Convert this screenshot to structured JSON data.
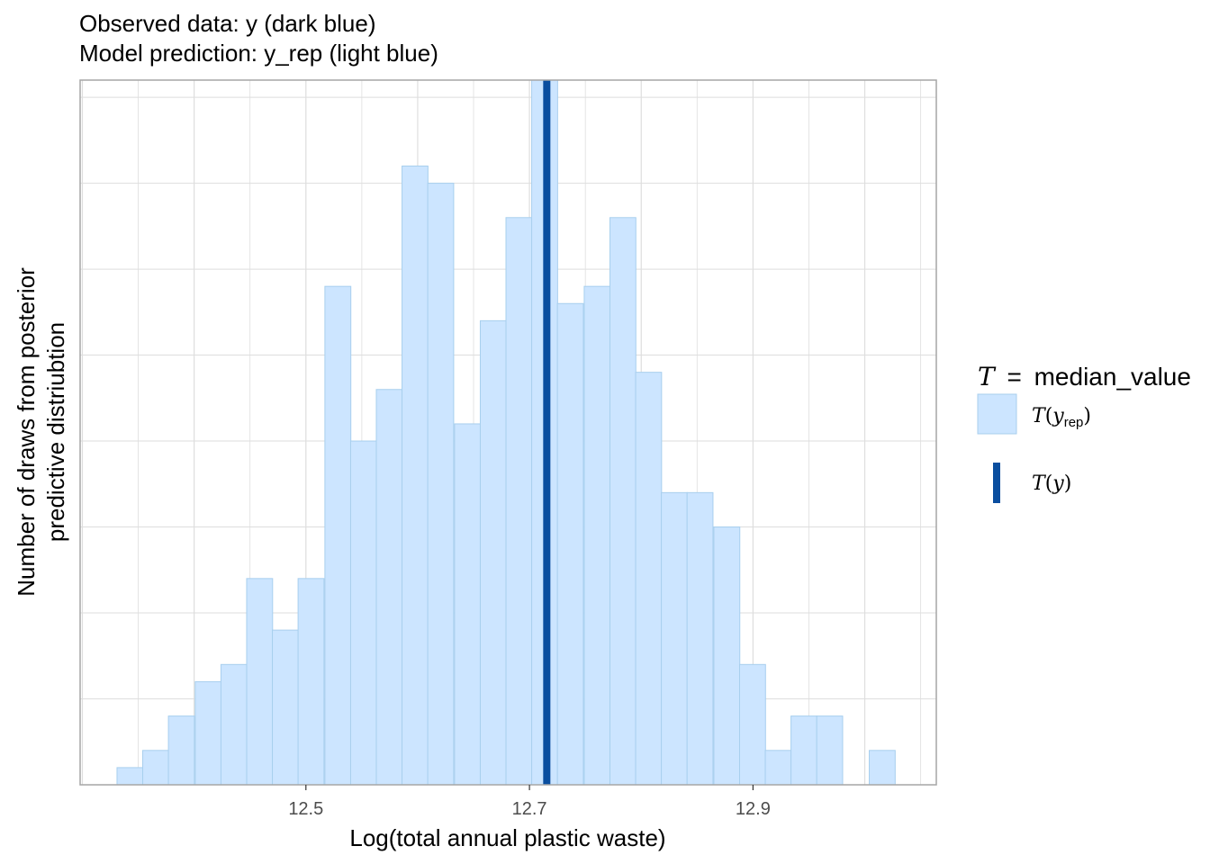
{
  "chart_data": {
    "type": "bar",
    "title_lines": [
      "Observed data: y (dark blue)",
      "Model prediction: y_rep (light blue)"
    ],
    "xlabel": "Log(total annual plastic waste)",
    "ylabel_lines": [
      "Number of draws from posterior",
      "predictive distriubtion"
    ],
    "x_ticks": [
      {
        "value": 12.5,
        "label": "12.5"
      },
      {
        "value": 12.7,
        "label": "12.7"
      },
      {
        "value": 12.9,
        "label": "12.9"
      }
    ],
    "xlim": [
      12.298,
      13.064
    ],
    "ylim": [
      0,
      41
    ],
    "y_tick_labels_shown": false,
    "grid": true,
    "bin_width": 0.0232,
    "bins": [
      {
        "x0": 12.331,
        "count": 1
      },
      {
        "x0": 12.354,
        "count": 2
      },
      {
        "x0": 12.377,
        "count": 4
      },
      {
        "x0": 12.401,
        "count": 6
      },
      {
        "x0": 12.424,
        "count": 7
      },
      {
        "x0": 12.447,
        "count": 12
      },
      {
        "x0": 12.47,
        "count": 9
      },
      {
        "x0": 12.493,
        "count": 12
      },
      {
        "x0": 12.517,
        "count": 29
      },
      {
        "x0": 12.54,
        "count": 20
      },
      {
        "x0": 12.563,
        "count": 23
      },
      {
        "x0": 12.586,
        "count": 36
      },
      {
        "x0": 12.609,
        "count": 35
      },
      {
        "x0": 12.633,
        "count": 21
      },
      {
        "x0": 12.656,
        "count": 27
      },
      {
        "x0": 12.679,
        "count": 33
      },
      {
        "x0": 12.702,
        "count": 41
      },
      {
        "x0": 12.725,
        "count": 28
      },
      {
        "x0": 12.749,
        "count": 29
      },
      {
        "x0": 12.772,
        "count": 33
      },
      {
        "x0": 12.795,
        "count": 24
      },
      {
        "x0": 12.818,
        "count": 17
      },
      {
        "x0": 12.841,
        "count": 17
      },
      {
        "x0": 12.865,
        "count": 15
      },
      {
        "x0": 12.888,
        "count": 7
      },
      {
        "x0": 12.911,
        "count": 2
      },
      {
        "x0": 12.934,
        "count": 4
      },
      {
        "x0": 12.957,
        "count": 4
      },
      {
        "x0": 13.004,
        "count": 2
      }
    ],
    "observed_value": 12.7155,
    "colors": {
      "rep_fill": "#cce5ff",
      "rep_stroke": "#a8cfee",
      "observed": "#0a4e9f",
      "grid": "#dedede",
      "panel_border": "#a6a6a6"
    },
    "legend": {
      "position": "right",
      "title_symbol": "T",
      "title_eq": "=",
      "title_text": "median_value",
      "rep_label": {
        "fn": "T",
        "var": "y",
        "sub": "rep"
      },
      "obs_label": {
        "fn": "T",
        "var": "y"
      }
    }
  }
}
